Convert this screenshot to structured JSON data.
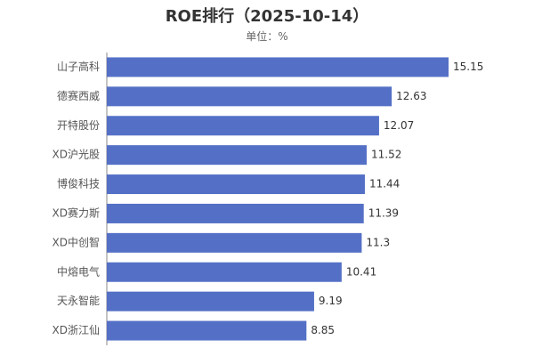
{
  "chart_data": {
    "type": "bar",
    "orientation": "horizontal",
    "title": "ROE排行（2025-10-14）",
    "subtitle": "单位：%",
    "categories": [
      "山子高科",
      "德赛西威",
      "开特股份",
      "XD沪光股",
      "博俊科技",
      "XD赛力斯",
      "XD中创智",
      "中熔电气",
      "天永智能",
      "XD浙江仙"
    ],
    "values": [
      15.15,
      12.63,
      12.07,
      11.52,
      11.44,
      11.39,
      11.3,
      10.41,
      9.19,
      8.85
    ],
    "value_labels": [
      "15.15",
      "12.63",
      "12.07",
      "11.52",
      "11.44",
      "11.39",
      "11.3",
      "10.41",
      "9.19",
      "8.85"
    ],
    "xlim": [
      0,
      15.15
    ],
    "bar_color": "#5470c6",
    "grid": false,
    "legend": "none"
  }
}
